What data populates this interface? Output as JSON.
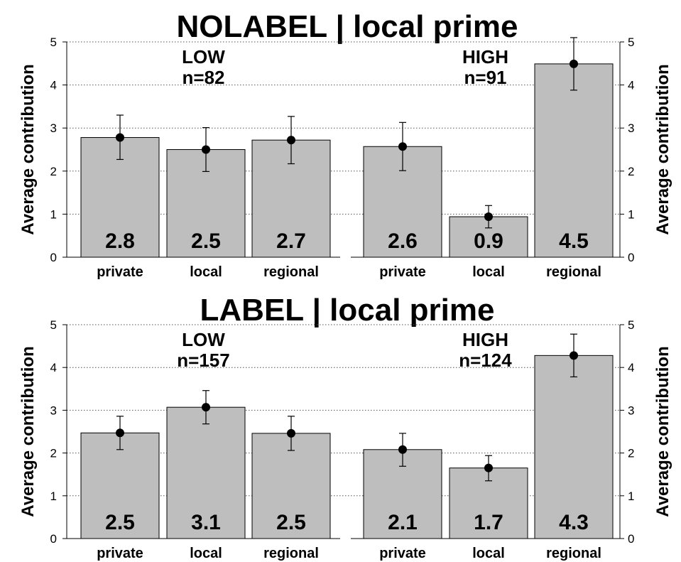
{
  "chart_data": [
    {
      "type": "bar",
      "title": "NOLABEL | local prime",
      "ylabel": "Average contribution",
      "ylim": [
        0,
        5
      ],
      "yticks": [
        "0",
        "1",
        "2",
        "3",
        "4",
        "5"
      ],
      "grid": true,
      "panels": [
        {
          "group": "LOW",
          "n": "n=82",
          "categories": [
            "private",
            "local",
            "regional"
          ],
          "values": [
            2.78,
            2.5,
            2.72
          ],
          "value_labels": [
            "2.8",
            "2.5",
            "2.7"
          ],
          "ci_low": [
            2.27,
            1.99,
            2.17
          ],
          "ci_high": [
            3.3,
            3.01,
            3.27
          ]
        },
        {
          "group": "HIGH",
          "n": "n=91",
          "categories": [
            "private",
            "local",
            "regional"
          ],
          "values": [
            2.57,
            0.94,
            4.49
          ],
          "value_labels": [
            "2.6",
            "0.9",
            "4.5"
          ],
          "ci_low": [
            2.01,
            0.68,
            3.88
          ],
          "ci_high": [
            3.13,
            1.2,
            5.1
          ]
        }
      ]
    },
    {
      "type": "bar",
      "title": "LABEL | local prime",
      "ylabel": "Average contribution",
      "ylim": [
        0,
        5
      ],
      "yticks": [
        "0",
        "1",
        "2",
        "3",
        "4",
        "5"
      ],
      "grid": true,
      "panels": [
        {
          "group": "LOW",
          "n": "n=157",
          "categories": [
            "private",
            "local",
            "regional"
          ],
          "values": [
            2.47,
            3.07,
            2.46
          ],
          "value_labels": [
            "2.5",
            "3.1",
            "2.5"
          ],
          "ci_low": [
            2.08,
            2.68,
            2.06
          ],
          "ci_high": [
            2.86,
            3.46,
            2.86
          ]
        },
        {
          "group": "HIGH",
          "n": "n=124",
          "categories": [
            "private",
            "local",
            "regional"
          ],
          "values": [
            2.08,
            1.65,
            4.28
          ],
          "value_labels": [
            "2.1",
            "1.7",
            "4.3"
          ],
          "ci_low": [
            1.69,
            1.35,
            3.78
          ],
          "ci_high": [
            2.46,
            1.94,
            4.78
          ]
        }
      ]
    }
  ]
}
